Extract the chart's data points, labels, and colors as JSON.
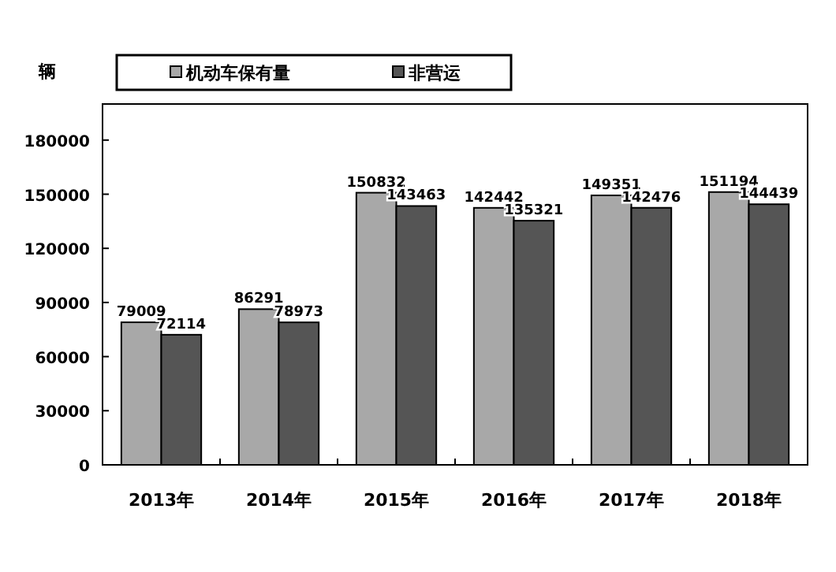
{
  "chart_data": {
    "type": "bar",
    "ylabel": "辆",
    "categories": [
      "2013年",
      "2014年",
      "2015年",
      "2016年",
      "2017年",
      "2018年"
    ],
    "series": [
      {
        "name": "机动车保有量",
        "color": "#a8a8a8",
        "values": [
          79009,
          86291,
          150832,
          142442,
          149351,
          151194
        ]
      },
      {
        "name": "非营运",
        "color": "#555555",
        "values": [
          72114,
          78973,
          143463,
          135321,
          142476,
          144439
        ]
      }
    ],
    "ylim": [
      0,
      200000
    ],
    "yticks": [
      0,
      30000,
      60000,
      90000,
      120000,
      150000,
      180000
    ],
    "grid": false,
    "legend": "top",
    "data_labels": true
  }
}
